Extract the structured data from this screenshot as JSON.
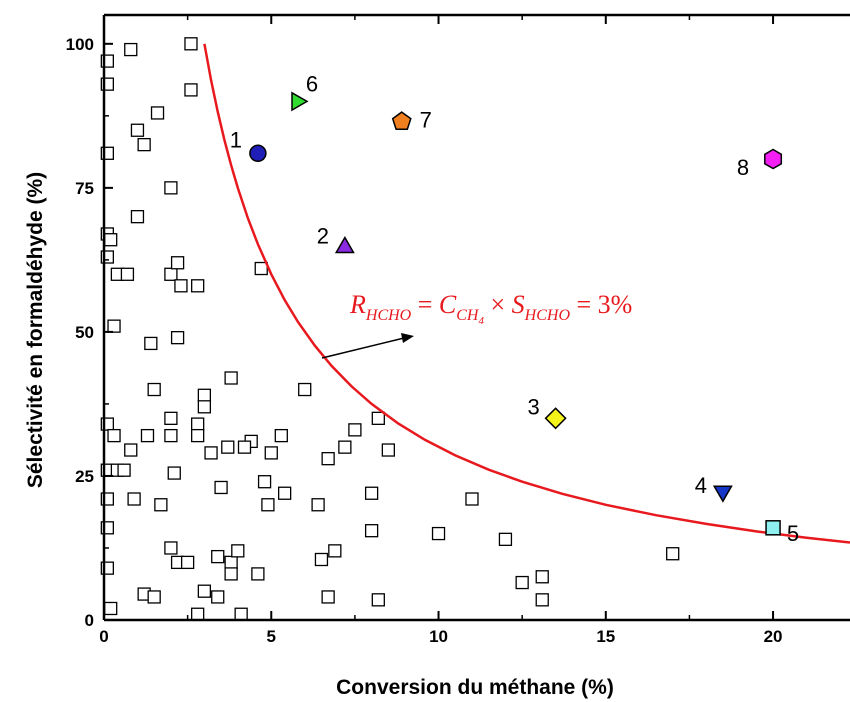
{
  "chart_data": {
    "type": "scatter",
    "xlabel": "Conversion du méthane (%)",
    "ylabel": "Sélectivité en formaldéhyde (%)",
    "xlim": [
      0,
      22.3
    ],
    "ylim": [
      0,
      105
    ],
    "x_ticks": [
      "0",
      "5",
      "10",
      "15",
      "20"
    ],
    "y_ticks": [
      "0",
      "25",
      "50",
      "75",
      "100"
    ],
    "grid": false,
    "series": [
      {
        "marker": "square-open",
        "color": "#000000",
        "points": [
          [
            0.1,
            97
          ],
          [
            0.1,
            93
          ],
          [
            0.8,
            99
          ],
          [
            2.6,
            100
          ],
          [
            1.0,
            85
          ],
          [
            1.2,
            82.5
          ],
          [
            0.1,
            81
          ],
          [
            1.6,
            88
          ],
          [
            2.6,
            92
          ],
          [
            2.0,
            75
          ],
          [
            1.0,
            70
          ],
          [
            0.1,
            67
          ],
          [
            0.2,
            66
          ],
          [
            0.1,
            63
          ],
          [
            0.4,
            60
          ],
          [
            0.7,
            60
          ],
          [
            2.0,
            60
          ],
          [
            2.2,
            62
          ],
          [
            2.3,
            58
          ],
          [
            2.8,
            58
          ],
          [
            4.7,
            61
          ],
          [
            0.3,
            51
          ],
          [
            1.4,
            48
          ],
          [
            2.2,
            49
          ],
          [
            3.8,
            42
          ],
          [
            1.5,
            40
          ],
          [
            3.0,
            39
          ],
          [
            3.0,
            37
          ],
          [
            6.0,
            40
          ],
          [
            2.0,
            35
          ],
          [
            0.1,
            34
          ],
          [
            0.3,
            32
          ],
          [
            1.3,
            32
          ],
          [
            2.0,
            32
          ],
          [
            2.8,
            34
          ],
          [
            2.8,
            32
          ],
          [
            4.4,
            31
          ],
          [
            3.7,
            30
          ],
          [
            4.2,
            30
          ],
          [
            3.2,
            29
          ],
          [
            5.0,
            29
          ],
          [
            5.3,
            32
          ],
          [
            0.8,
            29.5
          ],
          [
            7.5,
            33
          ],
          [
            7.2,
            30
          ],
          [
            6.7,
            28
          ],
          [
            8.2,
            35
          ],
          [
            8.5,
            29.5
          ],
          [
            0.1,
            26
          ],
          [
            0.4,
            26
          ],
          [
            0.6,
            26
          ],
          [
            2.1,
            25.5
          ],
          [
            3.5,
            23
          ],
          [
            4.8,
            24
          ],
          [
            5.4,
            22
          ],
          [
            4.9,
            20
          ],
          [
            1.7,
            20
          ],
          [
            0.1,
            21
          ],
          [
            0.9,
            21
          ],
          [
            6.4,
            20
          ],
          [
            8.0,
            22
          ],
          [
            11.0,
            21
          ],
          [
            0.1,
            16
          ],
          [
            8.0,
            15.5
          ],
          [
            10.0,
            15
          ],
          [
            12.0,
            14
          ],
          [
            17.0,
            11.5
          ],
          [
            2.0,
            12.5
          ],
          [
            2.2,
            10
          ],
          [
            2.5,
            10
          ],
          [
            3.4,
            11
          ],
          [
            3.8,
            10
          ],
          [
            3.8,
            8
          ],
          [
            4.0,
            12
          ],
          [
            4.6,
            8
          ],
          [
            6.5,
            10.5
          ],
          [
            6.9,
            12
          ],
          [
            12.5,
            6.5
          ],
          [
            13.1,
            7.5
          ],
          [
            1.2,
            4.5
          ],
          [
            1.5,
            4
          ],
          [
            3.0,
            5
          ],
          [
            3.4,
            4
          ],
          [
            6.7,
            4
          ],
          [
            8.2,
            3.5
          ],
          [
            13.1,
            3.5
          ],
          [
            0.1,
            9
          ],
          [
            0.2,
            2
          ],
          [
            2.8,
            1
          ],
          [
            4.1,
            1
          ]
        ]
      }
    ],
    "highlight_points": [
      {
        "label": "1",
        "x": 4.6,
        "y": 81,
        "marker": "circle",
        "color": "#1f1fb8"
      },
      {
        "label": "2",
        "x": 7.2,
        "y": 65,
        "marker": "triangle-up",
        "color": "#8a2be2"
      },
      {
        "label": "3",
        "x": 13.5,
        "y": 35,
        "marker": "diamond",
        "color": "#f4f41a"
      },
      {
        "label": "4",
        "x": 18.5,
        "y": 22,
        "marker": "triangle-down",
        "color": "#1636c8"
      },
      {
        "label": "5",
        "x": 20.0,
        "y": 16,
        "marker": "square",
        "color": "#8ff0f0"
      },
      {
        "label": "6",
        "x": 5.8,
        "y": 90,
        "marker": "triangle-right",
        "color": "#2fdc2f"
      },
      {
        "label": "7",
        "x": 8.9,
        "y": 86.5,
        "marker": "pentagon",
        "color": "#f07f1f"
      },
      {
        "label": "8",
        "x": 20.0,
        "y": 80,
        "marker": "hexagon",
        "color": "#f41ff4"
      }
    ],
    "curve": {
      "color": "#e8191e",
      "equation": "x * y = 300",
      "annotation": "R_HCHO = C_CH4 × S_HCHO = 3%",
      "points": [
        [
          3.0,
          100
        ],
        [
          3.2,
          93.75
        ],
        [
          3.4,
          88.24
        ],
        [
          3.6,
          83.33
        ],
        [
          3.8,
          78.95
        ],
        [
          4.0,
          75.0
        ],
        [
          4.3,
          69.77
        ],
        [
          4.6,
          65.22
        ],
        [
          5.0,
          60.0
        ],
        [
          5.4,
          55.56
        ],
        [
          5.8,
          51.72
        ],
        [
          6.3,
          47.62
        ],
        [
          6.8,
          44.12
        ],
        [
          7.4,
          40.54
        ],
        [
          8.0,
          37.5
        ],
        [
          8.8,
          34.09
        ],
        [
          9.6,
          31.25
        ],
        [
          10.5,
          28.57
        ],
        [
          11.5,
          26.09
        ],
        [
          12.5,
          24.0
        ],
        [
          13.7,
          21.9
        ],
        [
          15.0,
          20.0
        ],
        [
          16.5,
          18.18
        ],
        [
          18.0,
          16.67
        ],
        [
          19.5,
          15.38
        ],
        [
          21.0,
          14.29
        ],
        [
          22.3,
          13.45
        ]
      ]
    }
  }
}
